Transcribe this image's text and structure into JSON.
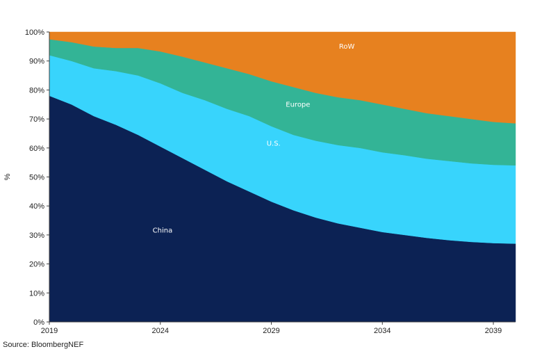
{
  "chart_data": {
    "type": "area",
    "stacked": true,
    "normalized": true,
    "x": [
      2019,
      2020,
      2021,
      2022,
      2023,
      2024,
      2025,
      2026,
      2027,
      2028,
      2029,
      2030,
      2031,
      2032,
      2033,
      2034,
      2035,
      2036,
      2037,
      2038,
      2039,
      2040
    ],
    "x_ticks": [
      2019,
      2024,
      2029,
      2034,
      2039
    ],
    "y_ticks": [
      "0%",
      "10%",
      "20%",
      "30%",
      "40%",
      "50%",
      "60%",
      "70%",
      "80%",
      "90%",
      "100%"
    ],
    "ylabel": "%",
    "ylim": [
      0,
      100
    ],
    "xlim": [
      2019,
      2040
    ],
    "grid": false,
    "series": [
      {
        "name": "China",
        "color": "#0c2254",
        "values": [
          78,
          75,
          71,
          68,
          64.5,
          60.5,
          56.5,
          52.5,
          48.5,
          45,
          41.5,
          38.5,
          36,
          34,
          32.5,
          31,
          30,
          29,
          28.2,
          27.6,
          27.2,
          27
        ]
      },
      {
        "name": "U.S.",
        "color": "#38d4fc",
        "values": [
          14,
          15,
          16.5,
          18.5,
          20.5,
          21.8,
          22.5,
          24,
          25,
          26,
          26,
          26,
          26.5,
          27,
          27.5,
          27.5,
          27.5,
          27.3,
          27.3,
          27.1,
          27,
          27
        ]
      },
      {
        "name": "Europe",
        "color": "#33b496",
        "values": [
          5.5,
          6.5,
          7.5,
          8,
          9.5,
          11,
          12.5,
          13,
          14,
          14.5,
          15.5,
          16.5,
          16.5,
          16.5,
          16.5,
          16.5,
          16,
          15.7,
          15.5,
          15.3,
          14.8,
          14.5
        ]
      },
      {
        "name": "RoW",
        "color": "#e7811f",
        "values": [
          2.5,
          3.5,
          5,
          5.5,
          5.5,
          6.7,
          8.5,
          10.5,
          12.5,
          14.5,
          17,
          19,
          21,
          22.5,
          23.5,
          25,
          26.5,
          28,
          29,
          30,
          31,
          31.5
        ]
      }
    ],
    "labels": [
      {
        "series": "China",
        "text": "China",
        "x": 2024.1,
        "y": 31.5
      },
      {
        "series": "U.S.",
        "text": "U.S.",
        "x": 2029.1,
        "y": 61.5
      },
      {
        "series": "Europe",
        "text": "Europe",
        "x": 2030.2,
        "y": 75.0
      },
      {
        "series": "RoW",
        "text": "RoW",
        "x": 2032.4,
        "y": 95.0
      }
    ]
  },
  "source": "Source: BloombergNEF"
}
